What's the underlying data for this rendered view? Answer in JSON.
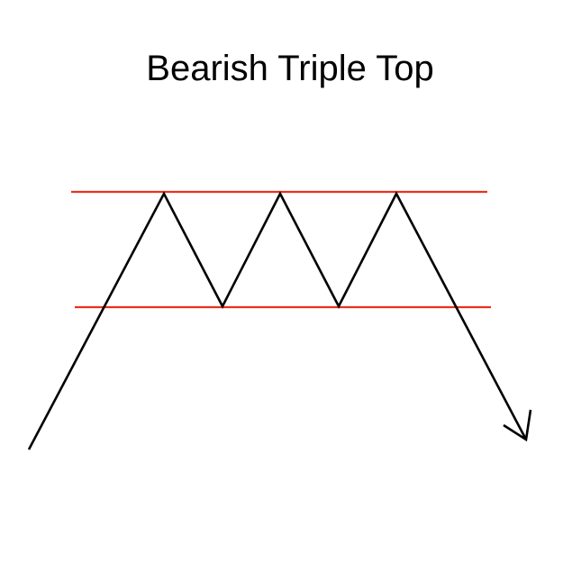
{
  "title": "Bearish Triple Top",
  "colors": {
    "background": "#ffffff",
    "price_path": "#000000",
    "resistance_line": "#e8321e",
    "support_line": "#e8321e"
  }
}
